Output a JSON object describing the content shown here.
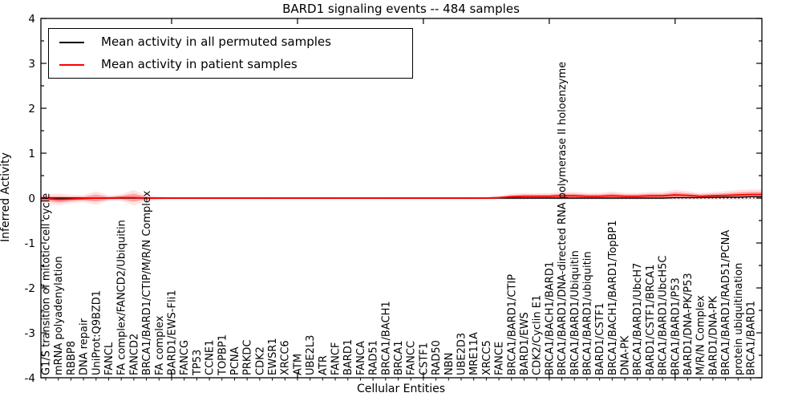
{
  "title": "BARD1 signaling events -- 484 samples",
  "axes": {
    "ylabel": "Inferred Activity",
    "xlabel": "Cellular Entities",
    "y_tick_labels": [
      "4",
      "3",
      "2",
      "1",
      "0",
      "-1",
      "-2",
      "-3",
      "-4"
    ]
  },
  "legend": {
    "entries": [
      {
        "label": "Mean activity in all permuted samples",
        "color": "#000000"
      },
      {
        "label": "Mean activity in patient samples",
        "color": "#ff0000"
      }
    ]
  },
  "colors": {
    "permuted_line": "#000000",
    "patient_line": "#ff0000",
    "patient_band": "#ff0000",
    "zero_line": "#000000",
    "axis": "#000000"
  },
  "chart_data": {
    "type": "line",
    "title": "BARD1 signaling events -- 484 samples",
    "xlabel": "Cellular Entities",
    "ylabel": "Inferred Activity",
    "ylim": [
      -4,
      4
    ],
    "y_major_ticks": [
      4,
      3,
      2,
      1,
      0,
      -1,
      -2,
      -3,
      -4
    ],
    "y_minor_ticks": [
      3.5,
      2.5,
      1.5,
      0.5,
      -0.5,
      -1.5,
      -2.5,
      -3.5
    ],
    "grid": false,
    "legend_position": "upper left",
    "zero_reference_line": 0,
    "categories": [
      "G1/S transition of mitotic cell cycle",
      "mRNA polyadenylation",
      "RBBP8",
      "DNA repair",
      "UniProt:Q9BZD1",
      "FANCL",
      "FA complex/FANCD2/Ubiquitin",
      "FANCD2",
      "BRCA1/BARD1/CTIP/M/R/N Complex",
      "FA complex",
      "BARD1/EWS-Fli1",
      "FANCG",
      "TP53",
      "CCNE1",
      "TOPBP1",
      "PCNA",
      "PRKDC",
      "CDK2",
      "EWSR1",
      "XRCC6",
      "ATM",
      "UBE2L3",
      "ATR",
      "FANCF",
      "BARD1",
      "FANCA",
      "RAD51",
      "BRCA1/BACH1",
      "BRCA1",
      "FANCC",
      "CSTF1",
      "RAD50",
      "NBN",
      "UBE2D3",
      "MRE11A",
      "XRCC5",
      "FANCE",
      "BRCA1/BARD1/CTIP",
      "BARD1/EWS",
      "CDK2/Cyclin E1",
      "BRCA1/BACH1/BARD1",
      "BRCA1/BARD1/DNA-directed RNA polymerase II holoenzyme",
      "BRCA1/BARD1/Ubiquitin",
      "BRCA1/BARD1/ubiquitin",
      "BARD1/CSTF1",
      "BRCA1/BACH1/BARD1/TopBP1",
      "DNA-PK",
      "BRCA1/BARD1/UbcH7",
      "BARD1/CSTF1/BRCA1",
      "BRCA1/BARD1/UbcH5C",
      "BRCA1/BARD1/P53",
      "BARD1/DNA-PK/P53",
      "M/R/N Complex",
      "BARD1/DNA-PK",
      "BRCA1/BARD1/RAD51/PCNA",
      "protein ubiquitination",
      "BRCA1/BARD1"
    ],
    "series": [
      {
        "name": "Mean activity in all permuted samples",
        "color": "#000000",
        "values": [
          0,
          0,
          0,
          0,
          0,
          0,
          0,
          0,
          0,
          0,
          0,
          0,
          0,
          0,
          0,
          0,
          0,
          0,
          0,
          0,
          0,
          0,
          0,
          0,
          0,
          0,
          0,
          0,
          0,
          0,
          0,
          0,
          0,
          0,
          0,
          0,
          0,
          0,
          0,
          0,
          0,
          0,
          0,
          0,
          0,
          0,
          0,
          0,
          0,
          0,
          0.01,
          0.01,
          0.01,
          0.015,
          0.02,
          0.02,
          0.03
        ]
      },
      {
        "name": "Mean activity in patient samples",
        "color": "#ff0000",
        "values": [
          -0.01,
          -0.03,
          -0.02,
          -0.01,
          0,
          0,
          0.01,
          0.01,
          0,
          0,
          0,
          0,
          0,
          0,
          0,
          0,
          0,
          0,
          0,
          0,
          0,
          0,
          0,
          0,
          0,
          0,
          0,
          0,
          0,
          0,
          0,
          0,
          0,
          0,
          0,
          0,
          0.01,
          0.03,
          0.04,
          0.04,
          0.04,
          0.05,
          0.05,
          0.04,
          0.04,
          0.05,
          0.04,
          0.04,
          0.05,
          0.05,
          0.07,
          0.06,
          0.04,
          0.05,
          0.06,
          0.07,
          0.08
        ],
        "band_halfwidth": [
          0.05,
          0.07,
          0.05,
          0.04,
          0.08,
          0.03,
          0.04,
          0.09,
          0.03,
          0.02,
          0.015,
          0.015,
          0.015,
          0.015,
          0.015,
          0.015,
          0.015,
          0.015,
          0.015,
          0.015,
          0.015,
          0.015,
          0.015,
          0.015,
          0.015,
          0.015,
          0.015,
          0.015,
          0.015,
          0.015,
          0.015,
          0.015,
          0.015,
          0.015,
          0.015,
          0.015,
          0.02,
          0.035,
          0.04,
          0.035,
          0.035,
          0.05,
          0.045,
          0.04,
          0.04,
          0.05,
          0.04,
          0.04,
          0.045,
          0.045,
          0.06,
          0.05,
          0.04,
          0.045,
          0.05,
          0.06,
          0.06
        ]
      }
    ]
  }
}
